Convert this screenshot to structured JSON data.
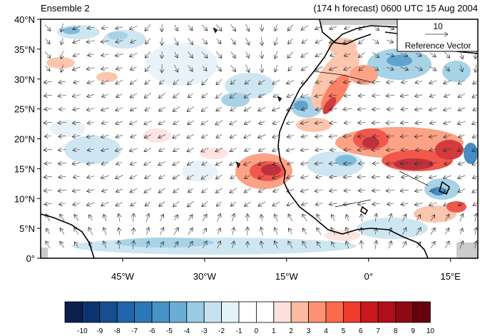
{
  "header": {
    "left_title": "Ensemble 2",
    "right_title": "(174 h forecast) 0600 UTC 15 Aug 2004"
  },
  "map": {
    "lon_range": [
      -60,
      20
    ],
    "lat_range": [
      0,
      40
    ],
    "lat_ticks": [
      {
        "value": 0,
        "label": "0°"
      },
      {
        "value": 5,
        "label": "5°N"
      },
      {
        "value": 10,
        "label": "10°N"
      },
      {
        "value": 15,
        "label": "15°N"
      },
      {
        "value": 20,
        "label": "20°N"
      },
      {
        "value": 25,
        "label": "25°N"
      },
      {
        "value": 30,
        "label": "30°N"
      },
      {
        "value": 35,
        "label": "35°N"
      },
      {
        "value": 40,
        "label": "40°N"
      }
    ],
    "lon_ticks": [
      {
        "value": -45,
        "label": "45°W"
      },
      {
        "value": -30,
        "label": "30°W"
      },
      {
        "value": -15,
        "label": "15°W"
      },
      {
        "value": 0,
        "label": "0°"
      },
      {
        "value": 15,
        "label": "15°E"
      }
    ],
    "reference_vector": {
      "magnitude": "10",
      "label": "Reference Vector"
    }
  },
  "colorbar": {
    "labels": [
      "-10",
      "-9",
      "-8",
      "-7",
      "-6",
      "-5",
      "-4",
      "-3",
      "-2",
      "-1",
      "0",
      "1",
      "2",
      "3",
      "4",
      "5",
      "6",
      "7",
      "8",
      "9",
      "10"
    ],
    "colors": [
      "#0a1f4d",
      "#0d3470",
      "#164f8f",
      "#1f66aa",
      "#2a78b8",
      "#4593c7",
      "#6aaed6",
      "#99cbe2",
      "#c6e2f0",
      "#e4f2f9",
      "#ffffff",
      "#ffffff",
      "#fde0dd",
      "#fcbba1",
      "#fc9272",
      "#fb6a4a",
      "#ef3b2c",
      "#cb181d",
      "#b10e1c",
      "#8b0a14",
      "#67000d"
    ]
  }
}
